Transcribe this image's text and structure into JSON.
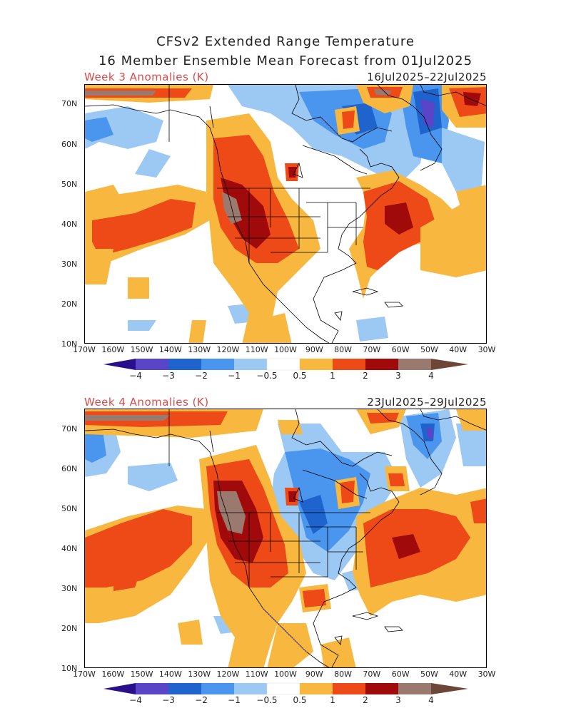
{
  "header": {
    "title_line1": "CFSv2 Extended Range Temperature",
    "title_line2": "16 Member Ensemble Mean Forecast from 01Jul2025"
  },
  "panels": [
    {
      "label": "Week 3 Anomalies (K)",
      "dates": "16Jul2025–22Jul2025"
    },
    {
      "label": "Week 4 Anomalies (K)",
      "dates": "23Jul2025–29Jul2025"
    }
  ],
  "axes": {
    "lat_labels": [
      "70N",
      "60N",
      "50N",
      "40N",
      "30N",
      "20N",
      "10N"
    ],
    "lon_labels": [
      "170W",
      "160W",
      "150W",
      "140W",
      "130W",
      "120W",
      "110W",
      "100W",
      "90W",
      "80W",
      "70W",
      "60W",
      "50W",
      "40W",
      "30W"
    ]
  },
  "colorbar": {
    "labels": [
      "−4",
      "−3",
      "−2",
      "−1",
      "−0.5",
      "0.5",
      "1",
      "2",
      "3",
      "4"
    ],
    "colors": {
      "lt_m4": "#2a0f8c",
      "m4_m3": "#5a45c8",
      "m3_m2": "#1f64cc",
      "m2_m1": "#4a96ee",
      "m1_m05": "#9cc8f4",
      "neutral": "#ffffff",
      "p05_p1": "#f8b840",
      "p1_p2": "#ee4a18",
      "p2_p3": "#a00a0a",
      "p3_p4": "#9a7a6e",
      "gt_p4": "#6e4638"
    }
  }
}
